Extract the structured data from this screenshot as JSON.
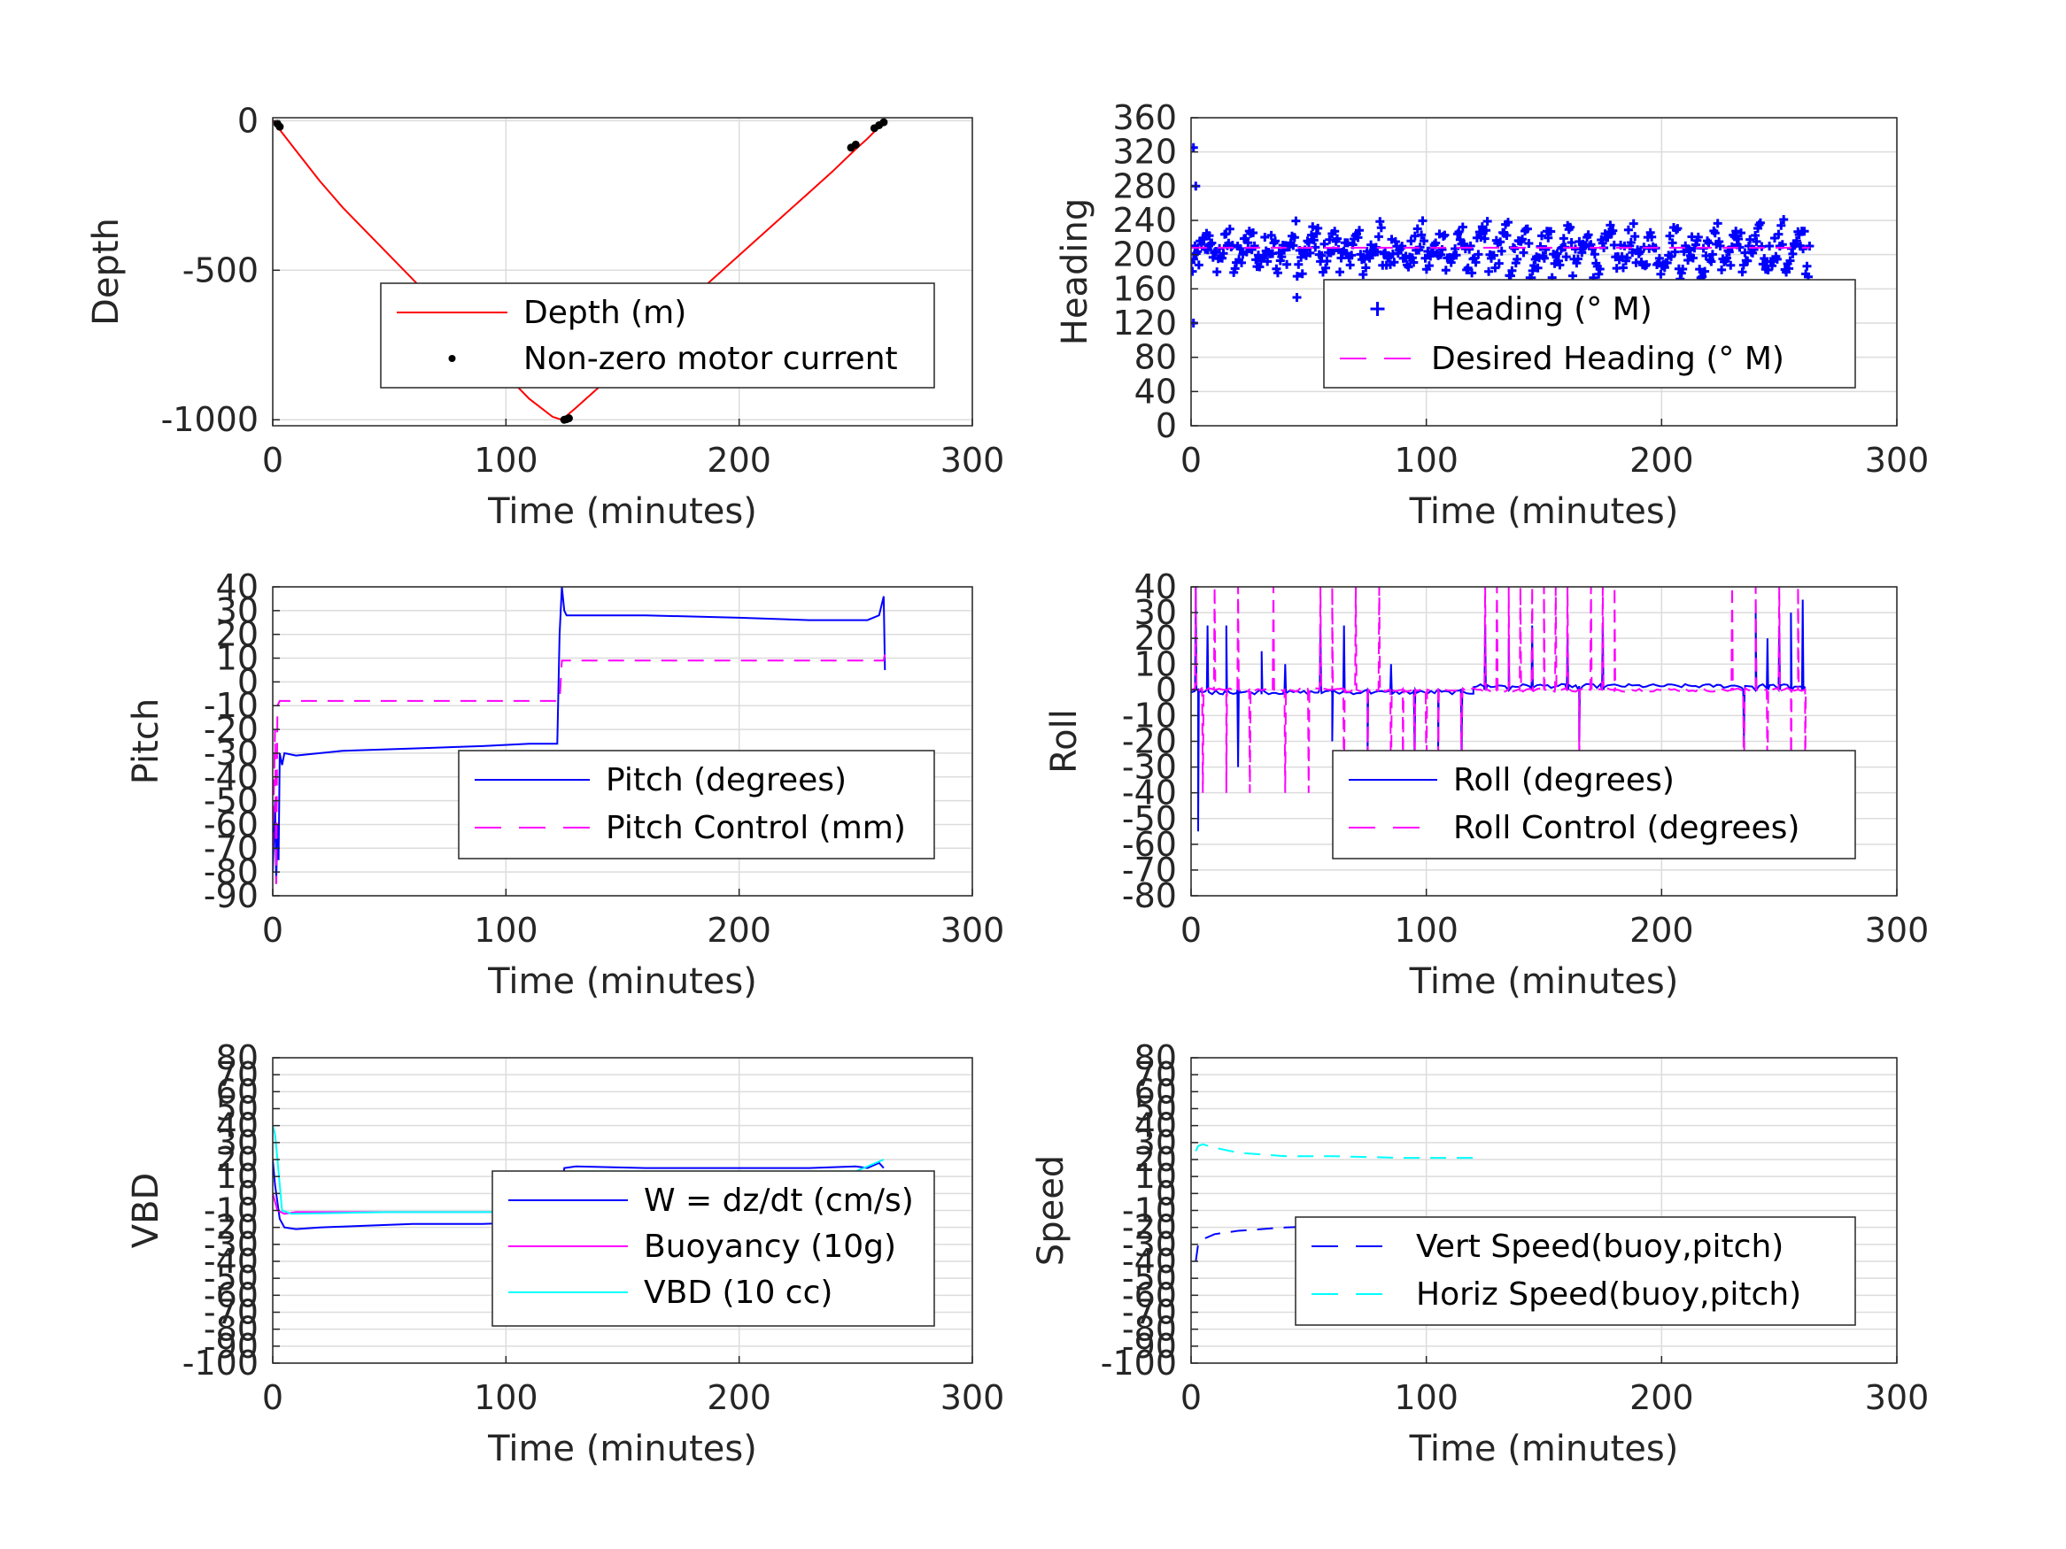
{
  "chart_data": [
    {
      "id": "depth",
      "type": "line",
      "xlabel": "Time (minutes)",
      "ylabel": "Depth",
      "xlim": [
        0,
        300
      ],
      "ylim": [
        -1020,
        10
      ],
      "xticks": [
        0,
        100,
        200,
        300
      ],
      "yticks": [
        -1000,
        -500,
        0
      ],
      "ytick_labels": [
        "-1000",
        "-500",
        "0"
      ],
      "grid": true,
      "legend_position": "lower-right",
      "legend": [
        {
          "label": "Depth (m)",
          "color": "#ff0000",
          "style": "solid"
        },
        {
          "label": "Non-zero motor current",
          "color": "#000000",
          "style": "dot"
        }
      ],
      "series": [
        {
          "name": "Depth (m)",
          "color": "#ff0000",
          "kind": "line",
          "x": [
            0,
            10,
            20,
            30,
            40,
            50,
            60,
            70,
            80,
            90,
            100,
            110,
            120,
            124,
            130,
            140,
            150,
            160,
            170,
            180,
            190,
            200,
            210,
            220,
            230,
            240,
            250,
            255,
            262
          ],
          "y": [
            0,
            -100,
            -200,
            -290,
            -370,
            -450,
            -530,
            -610,
            -690,
            -770,
            -850,
            -930,
            -990,
            -1000,
            -960,
            -890,
            -820,
            -740,
            -660,
            -590,
            -520,
            -450,
            -380,
            -310,
            -240,
            -170,
            -95,
            -60,
            -5
          ]
        },
        {
          "name": "Non-zero motor current",
          "color": "#000000",
          "kind": "points",
          "x": [
            2,
            3,
            125,
            126,
            127,
            248,
            250,
            258,
            260,
            262
          ],
          "y": [
            -10,
            -20,
            -1000,
            -998,
            -995,
            -90,
            -80,
            -25,
            -15,
            -5
          ]
        }
      ]
    },
    {
      "id": "heading",
      "type": "scatter",
      "xlabel": "Time (minutes)",
      "ylabel": "Heading",
      "xlim": [
        0,
        300
      ],
      "ylim": [
        0,
        360
      ],
      "xticks": [
        0,
        100,
        200,
        300
      ],
      "yticks": [
        0,
        40,
        80,
        120,
        160,
        200,
        240,
        280,
        320,
        360
      ],
      "ytick_labels": [
        "0",
        "40",
        "80",
        "120",
        "160",
        "200",
        "240",
        "280",
        "320",
        "360"
      ],
      "grid": true,
      "legend_position": "lower-right",
      "legend": [
        {
          "label": "Heading (° M)",
          "color": "#0000ff",
          "style": "plus"
        },
        {
          "label": "Desired Heading (° M)",
          "color": "#ff00ff",
          "style": "dashed"
        }
      ],
      "series": [
        {
          "name": "Heading (° M)",
          "color": "#0000ff",
          "kind": "sawtooth",
          "x_range": [
            0,
            263
          ],
          "base": 205,
          "outliers": [
            [
              1,
              325
            ],
            [
              1,
              120
            ],
            [
              2,
              280
            ],
            [
              45,
              150
            ],
            [
              75,
              140
            ],
            [
              85,
              130
            ],
            [
              150,
              150
            ],
            [
              160,
              95
            ]
          ]
        },
        {
          "name": "Desired Heading (° M)",
          "color": "#ff00ff",
          "kind": "line",
          "x": [
            0,
            263
          ],
          "y": [
            208,
            208
          ]
        }
      ]
    },
    {
      "id": "pitch",
      "type": "line",
      "xlabel": "Time (minutes)",
      "ylabel": "Pitch",
      "xlim": [
        0,
        300
      ],
      "ylim": [
        -90,
        40
      ],
      "xticks": [
        0,
        100,
        200,
        300
      ],
      "yticks": [
        -90,
        -80,
        -70,
        -60,
        -50,
        -40,
        -30,
        -20,
        -10,
        0,
        10,
        20,
        30,
        40
      ],
      "ytick_labels": [
        "-90",
        "-80",
        "-70",
        "-60",
        "-50",
        "-40",
        "-30",
        "-20",
        "-10",
        "0",
        "10",
        "20",
        "30",
        "40"
      ],
      "grid": true,
      "legend_position": "lower-right",
      "legend": [
        {
          "label": "Pitch (degrees)",
          "color": "#0000ff",
          "style": "solid"
        },
        {
          "label": "Pitch Control (mm)",
          "color": "#ff00ff",
          "style": "dashed"
        }
      ],
      "series": [
        {
          "name": "Pitch (degrees)",
          "color": "#0000ff",
          "kind": "line",
          "x": [
            0,
            1,
            1.5,
            2,
            2.5,
            3,
            4,
            5,
            10,
            30,
            60,
            90,
            110,
            122,
            123,
            124,
            125,
            126,
            130,
            160,
            200,
            230,
            255,
            260,
            262,
            262.5
          ],
          "y": [
            -80,
            -50,
            -85,
            -60,
            -75,
            -30,
            -35,
            -30,
            -31,
            -29,
            -28,
            -27,
            -26,
            -26,
            20,
            40,
            30,
            28,
            28,
            28,
            27,
            26,
            26,
            28,
            36,
            5
          ]
        },
        {
          "name": "Pitch Control (mm)",
          "color": "#ff00ff",
          "kind": "line",
          "x": [
            0,
            1,
            1.5,
            2,
            3,
            4,
            10,
            60,
            123,
            124,
            125,
            262,
            262.5
          ],
          "y": [
            -70,
            -20,
            -85,
            -10,
            -8,
            -8,
            -8,
            -8,
            -8,
            9,
            9,
            9,
            12
          ]
        }
      ]
    },
    {
      "id": "roll",
      "type": "line",
      "xlabel": "Time (minutes)",
      "ylabel": "Roll",
      "xlim": [
        0,
        300
      ],
      "ylim": [
        -80,
        40
      ],
      "xticks": [
        0,
        100,
        200,
        300
      ],
      "yticks": [
        -80,
        -70,
        -60,
        -50,
        -40,
        -30,
        -20,
        -10,
        0,
        10,
        20,
        30,
        40
      ],
      "ytick_labels": [
        "-80",
        "-70",
        "-60",
        "-50",
        "-40",
        "-30",
        "-20",
        "-10",
        "0",
        "10",
        "20",
        "30",
        "40"
      ],
      "grid": true,
      "legend_position": "lower-right",
      "legend": [
        {
          "label": "Roll (degrees)",
          "color": "#0000ff",
          "style": "solid"
        },
        {
          "label": "Roll Control (degrees)",
          "color": "#ff00ff",
          "style": "dashed"
        }
      ],
      "series": [
        {
          "name": "Roll (degrees)",
          "color": "#0000ff",
          "kind": "spikes",
          "base_segments": [
            [
              0,
              120,
              -1
            ],
            [
              120,
              262,
              1.5
            ]
          ],
          "spikes": [
            [
              2,
              40
            ],
            [
              3,
              -55
            ],
            [
              7,
              25
            ],
            [
              15,
              25
            ],
            [
              20,
              -30
            ],
            [
              30,
              15
            ],
            [
              40,
              10
            ],
            [
              55,
              25
            ],
            [
              60,
              -20
            ],
            [
              65,
              25
            ],
            [
              75,
              -30
            ],
            [
              85,
              10
            ],
            [
              95,
              -25
            ],
            [
              105,
              -25
            ],
            [
              115,
              -25
            ],
            [
              125,
              25
            ],
            [
              135,
              20
            ],
            [
              145,
              25
            ],
            [
              160,
              20
            ],
            [
              165,
              -20
            ],
            [
              175,
              25
            ],
            [
              235,
              -20
            ],
            [
              240,
              30
            ],
            [
              245,
              20
            ],
            [
              250,
              25
            ],
            [
              255,
              30
            ],
            [
              260,
              35
            ]
          ]
        },
        {
          "name": "Roll Control (degrees)",
          "color": "#ff00ff",
          "kind": "spikes",
          "base_segments": [
            [
              0,
              262,
              0
            ]
          ],
          "spikes": [
            [
              2,
              40
            ],
            [
              5,
              -40
            ],
            [
              10,
              40
            ],
            [
              15,
              -40
            ],
            [
              20,
              40
            ],
            [
              25,
              -40
            ],
            [
              35,
              40
            ],
            [
              40,
              -40
            ],
            [
              50,
              -40
            ],
            [
              55,
              40
            ],
            [
              60,
              40
            ],
            [
              65,
              -40
            ],
            [
              70,
              40
            ],
            [
              75,
              -40
            ],
            [
              80,
              40
            ],
            [
              85,
              -40
            ],
            [
              90,
              -40
            ],
            [
              95,
              -40
            ],
            [
              100,
              -40
            ],
            [
              105,
              -40
            ],
            [
              115,
              -40
            ],
            [
              125,
              40
            ],
            [
              130,
              40
            ],
            [
              135,
              40
            ],
            [
              140,
              40
            ],
            [
              145,
              40
            ],
            [
              150,
              40
            ],
            [
              155,
              40
            ],
            [
              160,
              40
            ],
            [
              165,
              -30
            ],
            [
              170,
              40
            ],
            [
              175,
              40
            ],
            [
              180,
              40
            ],
            [
              230,
              40
            ],
            [
              235,
              -40
            ],
            [
              240,
              40
            ],
            [
              245,
              -40
            ],
            [
              250,
              40
            ],
            [
              255,
              -40
            ],
            [
              258,
              40
            ],
            [
              261,
              -40
            ]
          ]
        }
      ]
    },
    {
      "id": "vbd",
      "type": "line",
      "xlabel": "Time (minutes)",
      "ylabel": "VBD",
      "xlim": [
        0,
        300
      ],
      "ylim": [
        -100,
        80
      ],
      "xticks": [
        0,
        100,
        200,
        300
      ],
      "yticks": [
        -100,
        -90,
        -80,
        -70,
        -60,
        -50,
        -40,
        -30,
        -20,
        -10,
        0,
        10,
        20,
        30,
        40,
        50,
        60,
        70,
        80
      ],
      "ytick_labels": [
        "-100",
        "-90",
        "-80",
        "-70",
        "-60",
        "-50",
        "-40",
        "-30",
        "-20",
        "-10",
        "0",
        "10",
        "20",
        "30",
        "40",
        "50",
        "60",
        "70",
        "80"
      ],
      "grid": true,
      "legend_position": "lower-right",
      "legend": [
        {
          "label": "W = dz/dt (cm/s)",
          "color": "#0000ff",
          "style": "solid"
        },
        {
          "label": "Buoyancy (10g)",
          "color": "#ff00ff",
          "style": "solid"
        },
        {
          "label": "VBD (10 cc)",
          "color": "#00ffff",
          "style": "solid"
        }
      ],
      "series": [
        {
          "name": "W = dz/dt (cm/s)",
          "color": "#0000ff",
          "kind": "line",
          "x": [
            0,
            1,
            3,
            5,
            10,
            20,
            40,
            60,
            90,
            110,
            120,
            123,
            124,
            125,
            130,
            160,
            200,
            230,
            250,
            255,
            260,
            262
          ],
          "y": [
            20,
            5,
            -15,
            -20,
            -21,
            -20,
            -19,
            -18,
            -18,
            -17,
            -17,
            -17,
            0,
            15,
            16,
            15,
            15,
            15,
            16,
            15,
            18,
            15
          ]
        },
        {
          "name": "Buoyancy (10g)",
          "color": "#ff00ff",
          "kind": "line",
          "x": [
            0,
            2,
            5,
            10,
            50,
            110,
            123,
            124,
            130,
            200,
            262
          ],
          "y": [
            0,
            -10,
            -12,
            -11,
            -11,
            -11,
            -11,
            11,
            11,
            11,
            11
          ]
        },
        {
          "name": "VBD (10 cc)",
          "color": "#00ffff",
          "kind": "line",
          "x": [
            0,
            1,
            2,
            4,
            8,
            50,
            100,
            123,
            124,
            128,
            200,
            250,
            262
          ],
          "y": [
            40,
            35,
            20,
            -10,
            -12,
            -11,
            -11,
            -11,
            5,
            13,
            13,
            13,
            20
          ]
        }
      ]
    },
    {
      "id": "speed",
      "type": "line",
      "xlabel": "Time (minutes)",
      "ylabel": "Speed",
      "xlim": [
        0,
        300
      ],
      "ylim": [
        -100,
        80
      ],
      "xticks": [
        0,
        100,
        200,
        300
      ],
      "yticks": [
        -100,
        -90,
        -80,
        -70,
        -60,
        -50,
        -40,
        -30,
        -20,
        -10,
        0,
        10,
        20,
        30,
        40,
        50,
        60,
        70,
        80
      ],
      "ytick_labels": [
        "-100",
        "-90",
        "-80",
        "-70",
        "-60",
        "-50",
        "-40",
        "-30",
        "-20",
        "-10",
        "0",
        "10",
        "20",
        "30",
        "40",
        "50",
        "60",
        "70",
        "80"
      ],
      "grid": true,
      "legend_position": "lower-right",
      "legend": [
        {
          "label": "Vert Speed(buoy,pitch)",
          "color": "#0000ff",
          "style": "dashed"
        },
        {
          "label": "Horiz Speed(buoy,pitch)",
          "color": "#00ffff",
          "style": "dashed"
        }
      ],
      "series": [
        {
          "name": "Vert Speed(buoy,pitch)",
          "color": "#0000ff",
          "kind": "line",
          "x": [
            2,
            3,
            5,
            10,
            20,
            40,
            60,
            90,
            120
          ],
          "y": [
            -40,
            -30,
            -27,
            -24,
            -22,
            -20,
            -19,
            -19,
            -18
          ]
        },
        {
          "name": "Horiz Speed(buoy,pitch)",
          "color": "#00ffff",
          "kind": "line",
          "x": [
            2,
            3,
            5,
            10,
            20,
            40,
            60,
            90,
            120
          ],
          "y": [
            25,
            28,
            29,
            27,
            24,
            22,
            22,
            21,
            21
          ]
        }
      ]
    }
  ]
}
